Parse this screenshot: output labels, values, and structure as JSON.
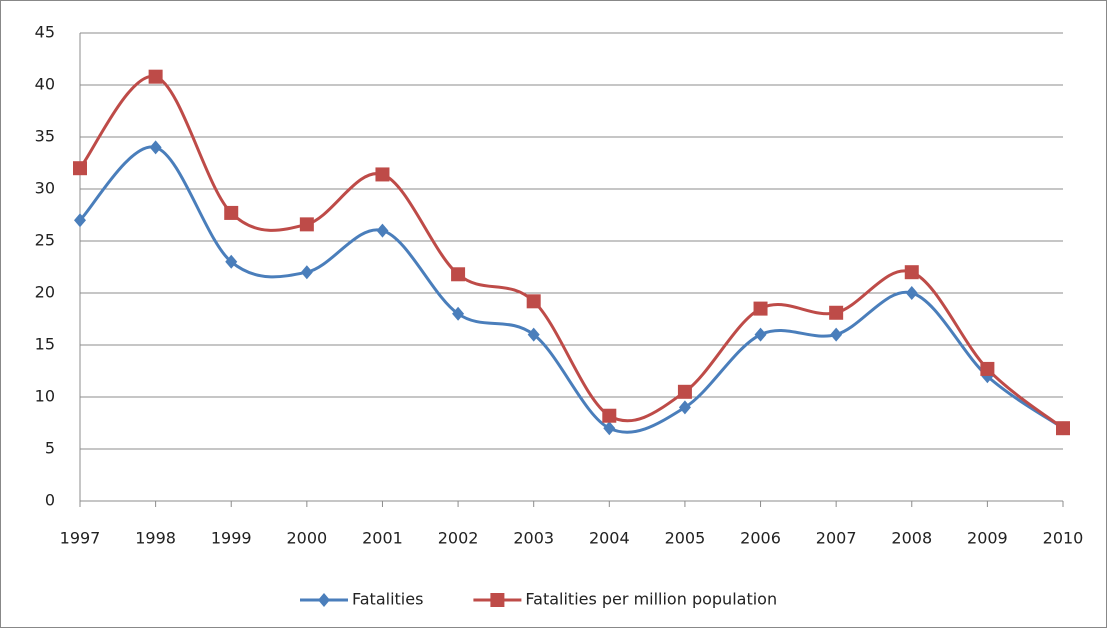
{
  "chart_data": {
    "type": "line",
    "smooth": true,
    "x": [
      1997,
      1998,
      1999,
      2000,
      2001,
      2002,
      2003,
      2004,
      2005,
      2006,
      2007,
      2008,
      2009,
      2010
    ],
    "xlim": [
      1997,
      2010
    ],
    "xticks": [
      1997,
      1998,
      1999,
      2000,
      2001,
      2002,
      2003,
      2004,
      2005,
      2006,
      2007,
      2008,
      2009,
      2010
    ],
    "ylim": [
      0,
      45
    ],
    "yticks": [
      0,
      5,
      10,
      15,
      20,
      25,
      30,
      35,
      40,
      45
    ],
    "grid": true,
    "legend": "bottom",
    "series": [
      {
        "name": "Fatalities",
        "color": "#4a7ebb",
        "marker": "diamond",
        "values": [
          27,
          34,
          23,
          22,
          26,
          18,
          16,
          7,
          9,
          16,
          16,
          20,
          12,
          7
        ]
      },
      {
        "name": "Fatalities per million population",
        "color": "#be4b48",
        "marker": "square",
        "values": [
          32,
          40.8,
          27.7,
          26.6,
          31.4,
          21.8,
          19.2,
          8.2,
          10.5,
          18.5,
          18.1,
          22,
          12.7,
          7
        ]
      }
    ]
  }
}
